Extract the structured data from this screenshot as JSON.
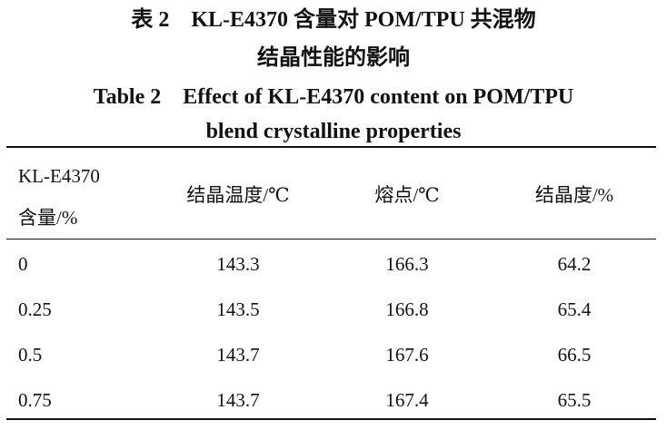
{
  "caption": {
    "cn_lines": [
      "表 2　KL-E4370 含量对 POM/TPU 共混物",
      "结晶性能的影响"
    ],
    "en_lines": [
      "Table 2　Effect of KL-E4370 content on POM/TPU",
      "blend crystalline properties"
    ]
  },
  "table": {
    "header": [
      [
        "KL-E4370",
        "含量/%"
      ],
      [
        "结晶温度/℃"
      ],
      [
        "熔点/℃"
      ],
      [
        "结晶度/%"
      ]
    ],
    "rows": [
      [
        "0",
        "143.3",
        "166.3",
        "64.2"
      ],
      [
        "0.25",
        "143.5",
        "166.8",
        "65.4"
      ],
      [
        "0.5",
        "143.7",
        "167.6",
        "66.5"
      ],
      [
        "0.75",
        "143.7",
        "167.4",
        "65.5"
      ]
    ]
  }
}
